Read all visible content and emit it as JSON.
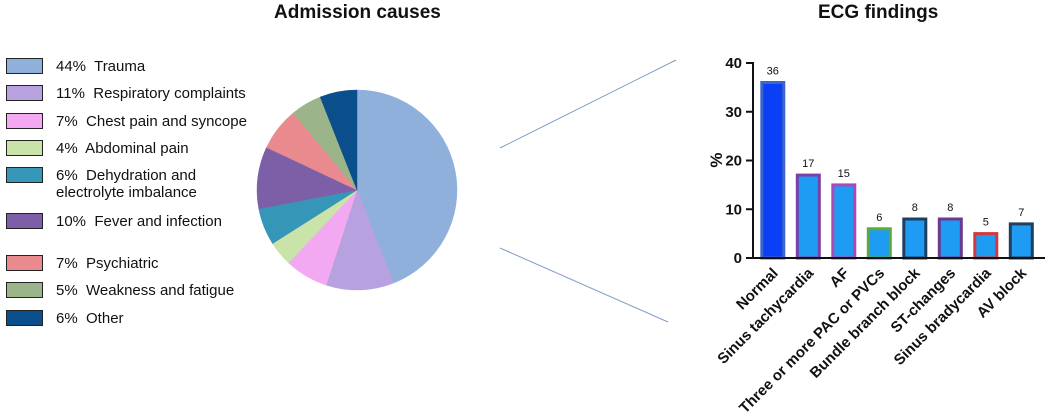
{
  "chart_data": [
    {
      "type": "pie",
      "title": "Admission causes",
      "slices": [
        {
          "value": 44,
          "pct_label": "44%",
          "label": "Trauma",
          "color": "#8EB0DB"
        },
        {
          "value": 11,
          "pct_label": "11%",
          "label": "Respiratory complaints",
          "color": "#B7A1DE"
        },
        {
          "value": 7,
          "pct_label": "7%",
          "label": "Chest pain and syncope",
          "color": "#F3A8F2"
        },
        {
          "value": 4,
          "pct_label": "4%",
          "label": "Abdominal pain",
          "color": "#C9E3A9"
        },
        {
          "value": 6,
          "pct_label": "6%",
          "label": "Dehydration and\nelectrolyte imbalance",
          "color": "#3596B8"
        },
        {
          "value": 10,
          "pct_label": "10%",
          "label": "Fever and infection",
          "color": "#7D5FA8"
        },
        {
          "value": 7,
          "pct_label": "7%",
          "label": "Psychiatric",
          "color": "#E88A8E"
        },
        {
          "value": 5,
          "pct_label": "5%",
          "label": "Weakness and fatigue",
          "color": "#9BB48A"
        },
        {
          "value": 6,
          "pct_label": "6%",
          "label": "Other",
          "color": "#0A4F8C"
        }
      ]
    },
    {
      "type": "bar",
      "title": "ECG findings",
      "ylabel": "%",
      "xlabel": "",
      "ylim": [
        0,
        40
      ],
      "yticks": [
        0,
        10,
        20,
        30,
        40
      ],
      "categories": [
        "Normal",
        "Sinus tachycardia",
        "AF",
        "Three or more PAC or PVCs",
        "Bundle branch block",
        "ST-changes",
        "Sinus bradycardia",
        "AV block"
      ],
      "values": [
        36,
        17,
        15,
        6,
        8,
        8,
        5,
        7
      ],
      "bar_colors": [
        "#0A3FF5",
        "#1E9BF3",
        "#1E9BF3",
        "#1E9BF3",
        "#1E9BF3",
        "#1E9BF3",
        "#1E9BF3",
        "#1E9BF3"
      ],
      "bar_borders": [
        "#3E66C9",
        "#7A3FA8",
        "#B146B4",
        "#5DAA3A",
        "#1F3F5E",
        "#6A3A8E",
        "#D0393F",
        "#1F3F5E"
      ]
    }
  ]
}
